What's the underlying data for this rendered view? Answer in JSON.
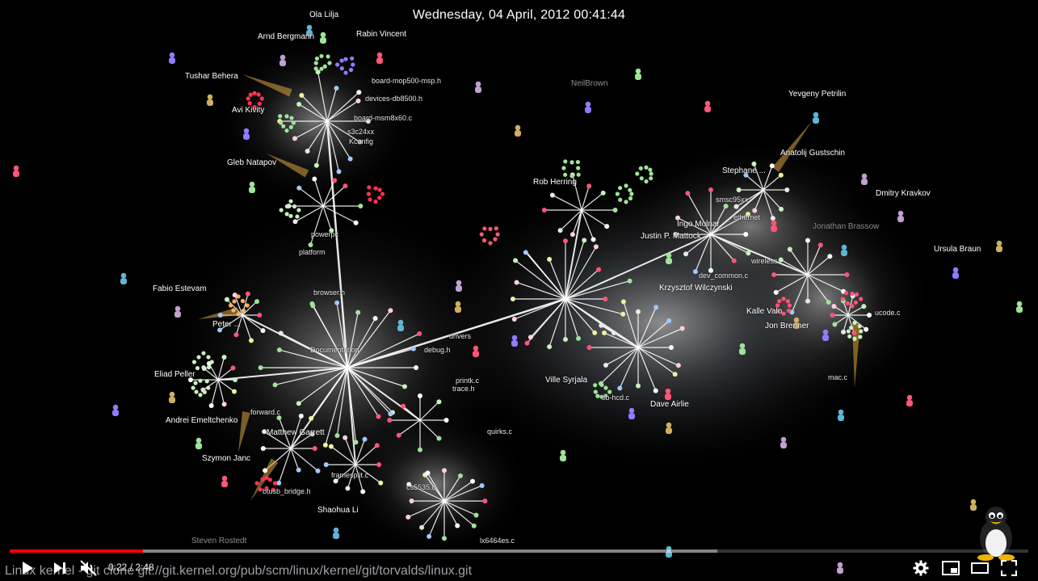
{
  "video": {
    "timestamp": "Wednesday, 04 April, 2012 00:41:44",
    "caption": "Linux kernel - git clone git://git.kernel.org/pub/scm/linux/kernel/git/torvalds/linux.git",
    "time_display": "0:22 / 2:48",
    "played_fraction": 0.131,
    "buffered_fraction": 0.695,
    "muted": true
  },
  "icons": {
    "play": "play-icon",
    "next": "next-icon",
    "mute": "volume-muted-icon",
    "settings": "gear-icon",
    "miniplayer": "miniplayer-icon",
    "theater": "theater-mode-icon",
    "fullscreen": "fullscreen-icon",
    "logo": "tux-penguin-icon"
  },
  "colors": {
    "progress": "#ff0000",
    "accent": "#ffffff"
  },
  "contributors": [
    "Ola Lilja",
    "Arnd Bergmann",
    "Rabin Vincent",
    "Tushar Behera",
    "Avi Kivity",
    "Gleb Natapov",
    "NeilBrown",
    "Yevgeny Petrilin",
    "Anatolij Gustschin",
    "Stephane ...",
    "Dmitry Kravkov",
    "Jonathan Brassow",
    "Rob Herring",
    "Justin P. Mattock",
    "Ingo Molnar",
    "Ursula Braun",
    "Krzysztof Wilczynski",
    "Fabio Estevam",
    "Peter ...",
    "Eliad Peller",
    "Andrei Emeltchenko",
    "Szymon Janc",
    "Shaohua Li",
    "Matthew Garrett",
    "Ville Syrjala",
    "Dave Airlie",
    "Jon Brenner",
    "Steven Rostedt",
    "Kalle Valo"
  ],
  "files": [
    "board-mop500-msp.h",
    "board-msm8x60.c",
    "devices-db8500.h",
    "s3c24xx",
    "Kconfig",
    "powerpc",
    "platform",
    "browser.h",
    "Documentation",
    "debug.h",
    "printk.c",
    "trace.h",
    "mac.c",
    "ucode.c",
    "ethernet",
    "wireless",
    "sb-hcd.c",
    "smsc95xx",
    "dev_common.c",
    "cs5535.c",
    "lx6464es.c",
    "quirks.c",
    "btusb_bridge.h",
    "forward.c",
    "framesplit.c",
    "drivers"
  ]
}
